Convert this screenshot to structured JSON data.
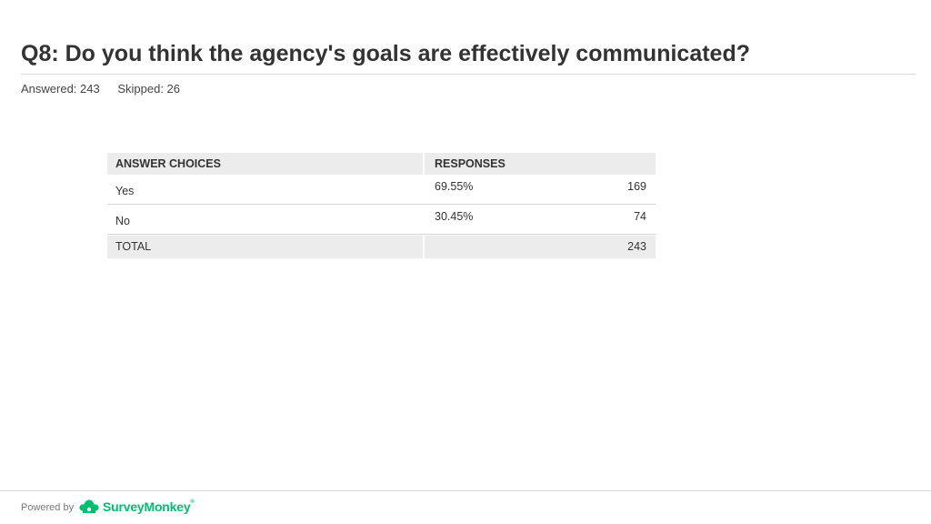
{
  "question": {
    "title": "Q8: Do you think the agency's goals are effectively communicated?",
    "answered": "Answered: 243",
    "skipped": "Skipped: 26"
  },
  "table": {
    "headers": {
      "choices": "ANSWER CHOICES",
      "responses": "RESPONSES"
    },
    "rows": [
      {
        "choice": "Yes",
        "percent": "69.55%",
        "count": "169"
      },
      {
        "choice": "No",
        "percent": "30.45%",
        "count": "74"
      }
    ],
    "total": {
      "label": "TOTAL",
      "count": "243"
    }
  },
  "footer": {
    "powered_by": "Powered by",
    "brand": "SurveyMonkey",
    "trademark": "®",
    "brand_color": "#00bf6f",
    "brand_icon": "surveymonkey-logo-icon"
  }
}
